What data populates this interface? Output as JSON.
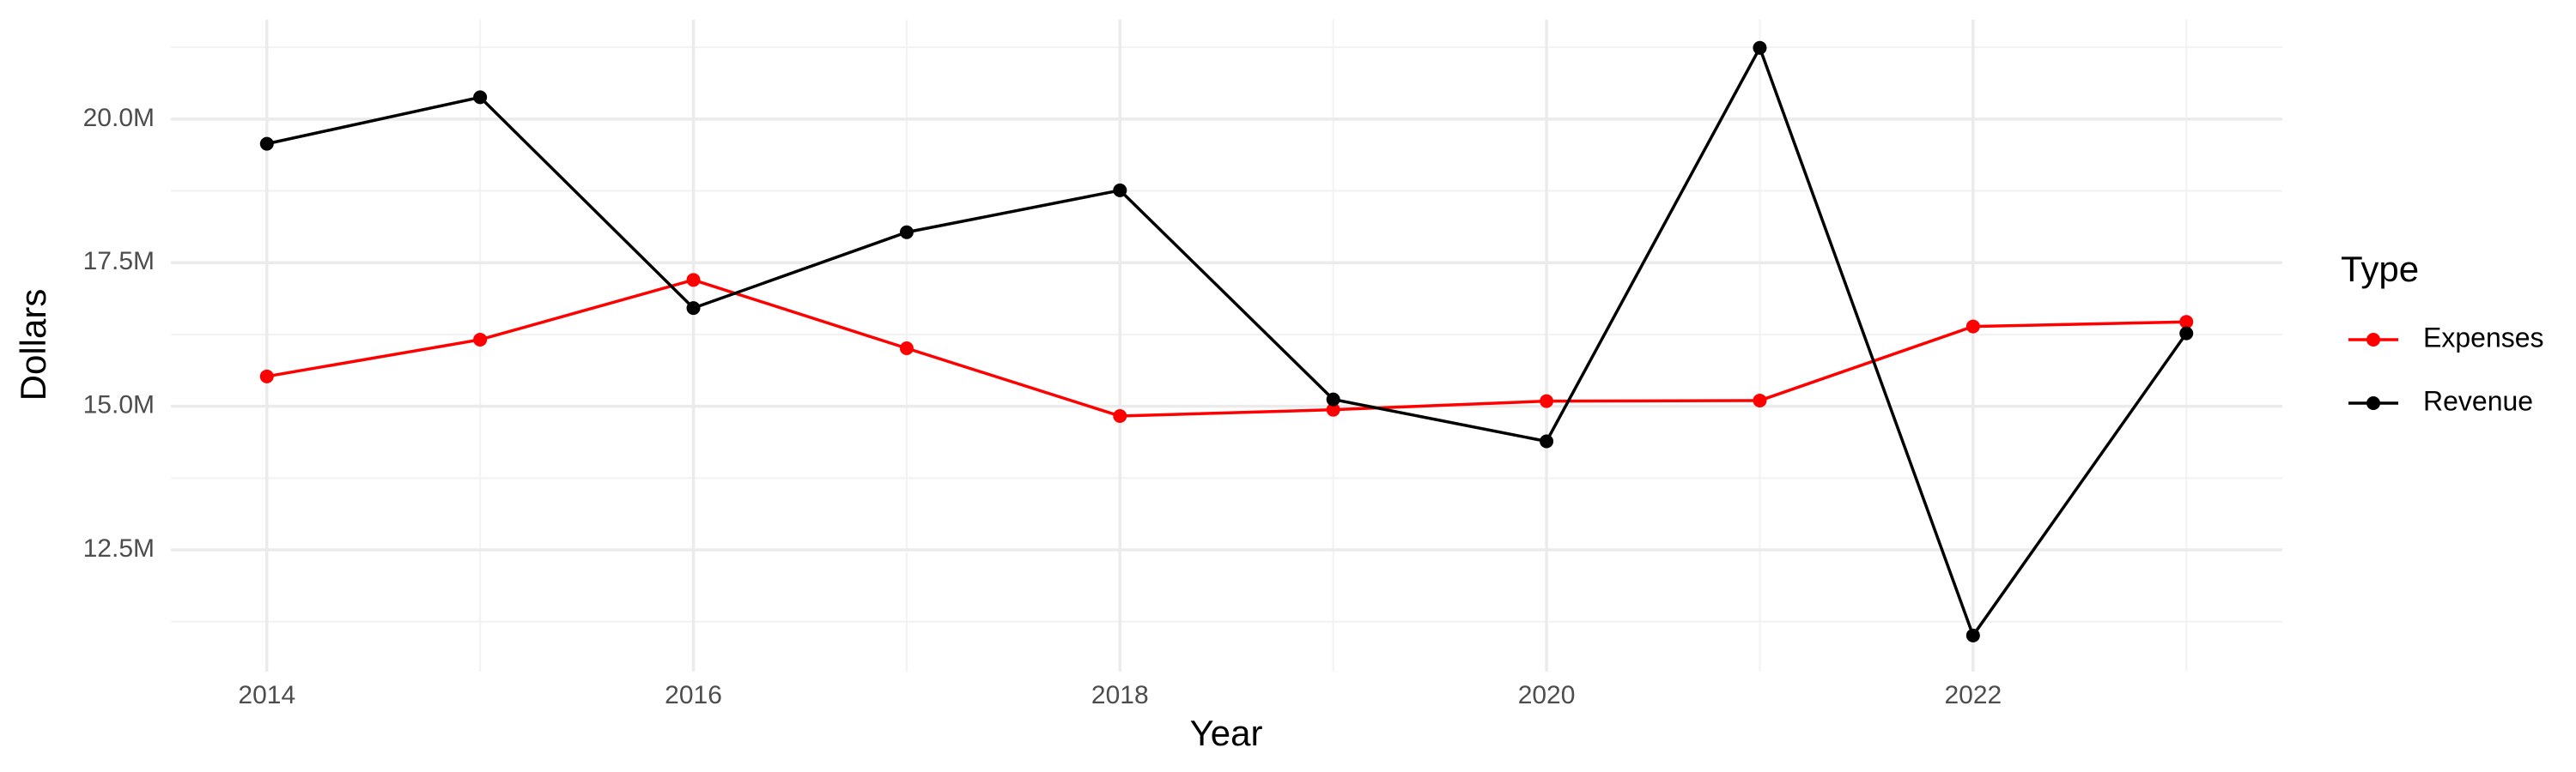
{
  "chart_data": {
    "type": "line",
    "x_label": "Year",
    "y_label": "Dollars",
    "x": [
      2014,
      2015,
      2016,
      2017,
      2018,
      2019,
      2020,
      2021,
      2022,
      2023
    ],
    "series": [
      {
        "name": "Expenses",
        "color": "#ff0000",
        "values": [
          15520000,
          16160000,
          17200000,
          16010000,
          14830000,
          14940000,
          15090000,
          15100000,
          16390000,
          16470000
        ]
      },
      {
        "name": "Revenue",
        "color": "#000000",
        "values": [
          19570000,
          20380000,
          16710000,
          18030000,
          18760000,
          15120000,
          14390000,
          21240000,
          11010000,
          16270000
        ]
      }
    ],
    "xlim": [
      2013.55,
      2023.45
    ],
    "xticks": [
      2014,
      2016,
      2018,
      2020,
      2022
    ],
    "ylim": [
      10380000,
      21730000
    ],
    "yticks": [
      {
        "value": 12500000,
        "label": "12.5M"
      },
      {
        "value": 15000000,
        "label": "15.0M"
      },
      {
        "value": 17500000,
        "label": "17.5M"
      },
      {
        "value": 20000000,
        "label": "20.0M"
      }
    ],
    "grid": true,
    "legend_title": "Type",
    "legend_position": "right"
  }
}
